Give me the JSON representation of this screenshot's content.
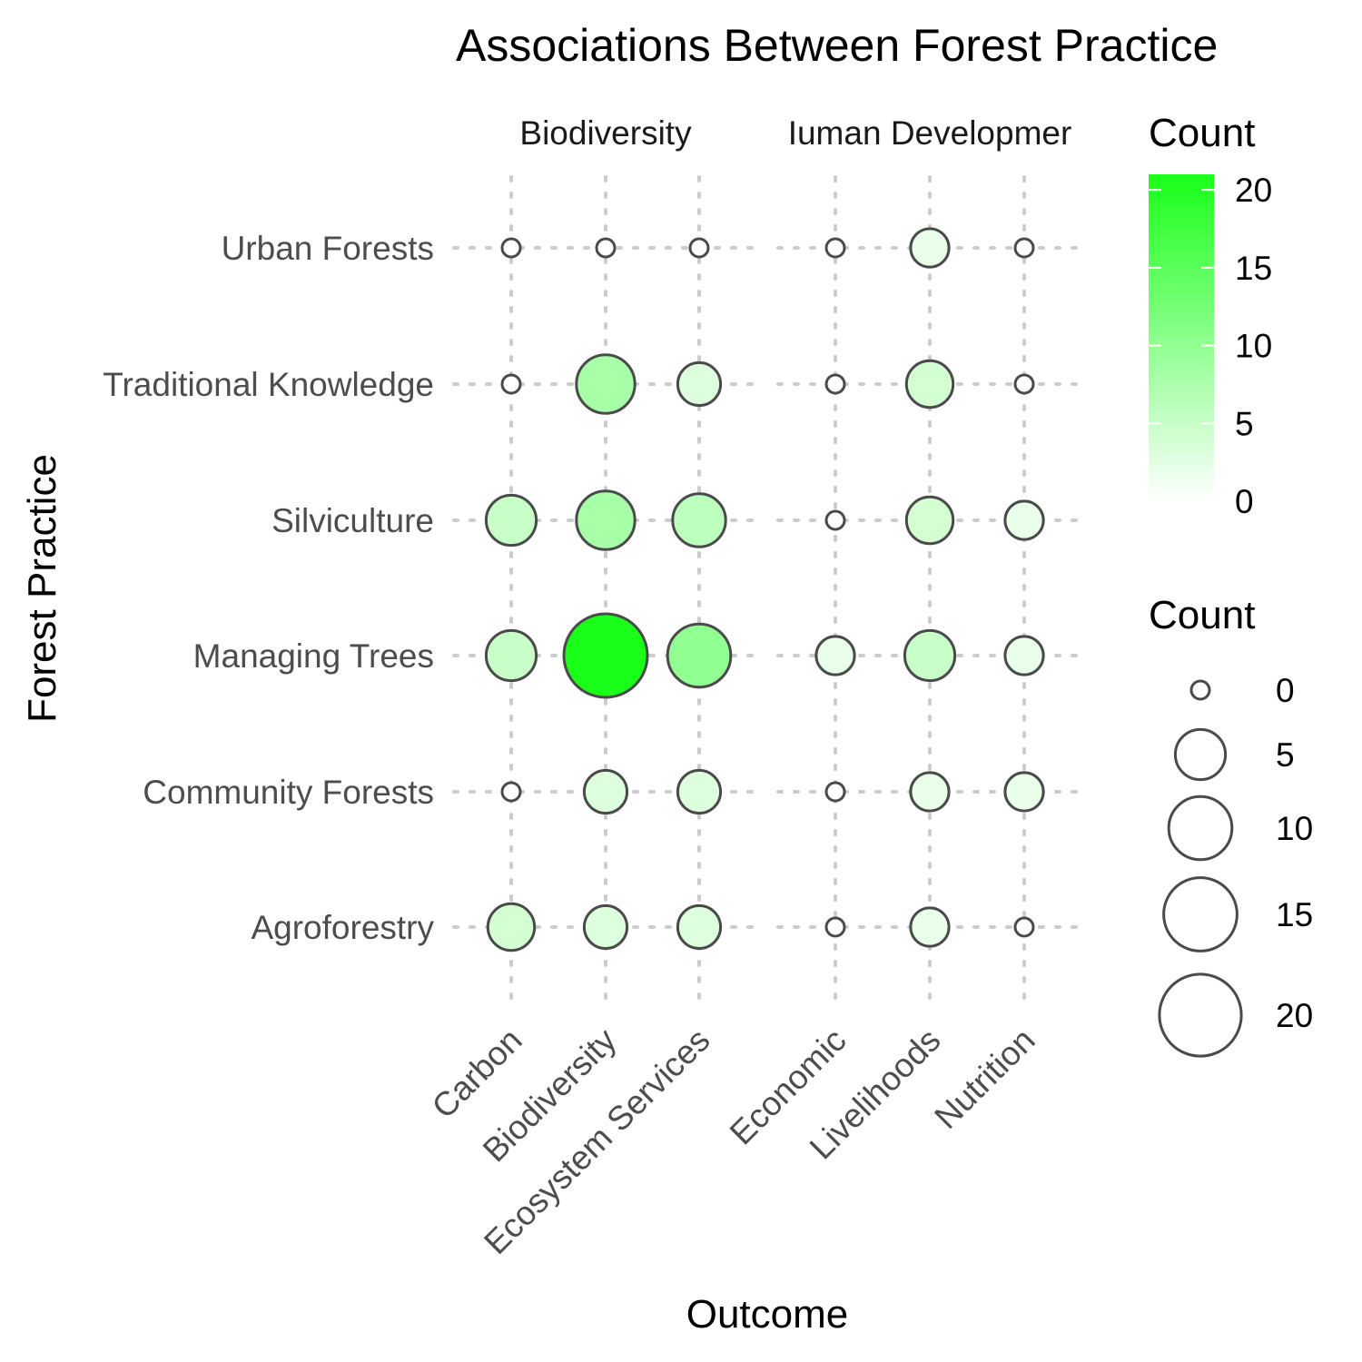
{
  "chart_data": {
    "type": "scatter",
    "title": "Associations Between Forest Practice",
    "xlabel": "Outcome",
    "ylabel": "Forest Practice",
    "facets": [
      {
        "name": "Biodiversity",
        "categories": [
          "Carbon",
          "Biodiversity",
          "Ecosystem Services"
        ]
      },
      {
        "name": "Iuman Developmer",
        "categories": [
          "Economic",
          "Livelihoods",
          "Nutrition"
        ]
      }
    ],
    "y_categories": [
      "Urban Forests",
      "Traditional Knowledge",
      "Silviculture",
      "Managing Trees",
      "Community Forests",
      "Agroforestry"
    ],
    "counts": {
      "Urban Forests": {
        "Carbon": 0,
        "Biodiversity": 0,
        "Ecosystem Services": 0,
        "Economic": 0,
        "Livelihoods": 2,
        "Nutrition": 0
      },
      "Traditional Knowledge": {
        "Carbon": 0,
        "Biodiversity": 8,
        "Ecosystem Services": 3,
        "Economic": 0,
        "Livelihoods": 4,
        "Nutrition": 0
      },
      "Silviculture": {
        "Carbon": 5,
        "Biodiversity": 8,
        "Ecosystem Services": 6,
        "Economic": 0,
        "Livelihoods": 4,
        "Nutrition": 2
      },
      "Managing Trees": {
        "Carbon": 5,
        "Biodiversity": 21,
        "Ecosystem Services": 10,
        "Economic": 2,
        "Livelihoods": 5,
        "Nutrition": 2
      },
      "Community Forests": {
        "Carbon": 0,
        "Biodiversity": 3,
        "Ecosystem Services": 3,
        "Economic": 0,
        "Livelihoods": 2,
        "Nutrition": 2
      },
      "Agroforestry": {
        "Carbon": 4,
        "Biodiversity": 3,
        "Ecosystem Services": 3,
        "Economic": 0,
        "Livelihoods": 2,
        "Nutrition": 0
      }
    },
    "color_scale": {
      "low": "#ffffff",
      "high": "#19ff19",
      "min": 0,
      "max": 21
    },
    "legends": {
      "color": {
        "title": "Count",
        "breaks": [
          0,
          5,
          10,
          15,
          20
        ]
      },
      "size": {
        "title": "Count",
        "breaks": [
          0,
          5,
          10,
          15,
          20
        ]
      }
    },
    "grid": true,
    "legend_position": "right"
  }
}
